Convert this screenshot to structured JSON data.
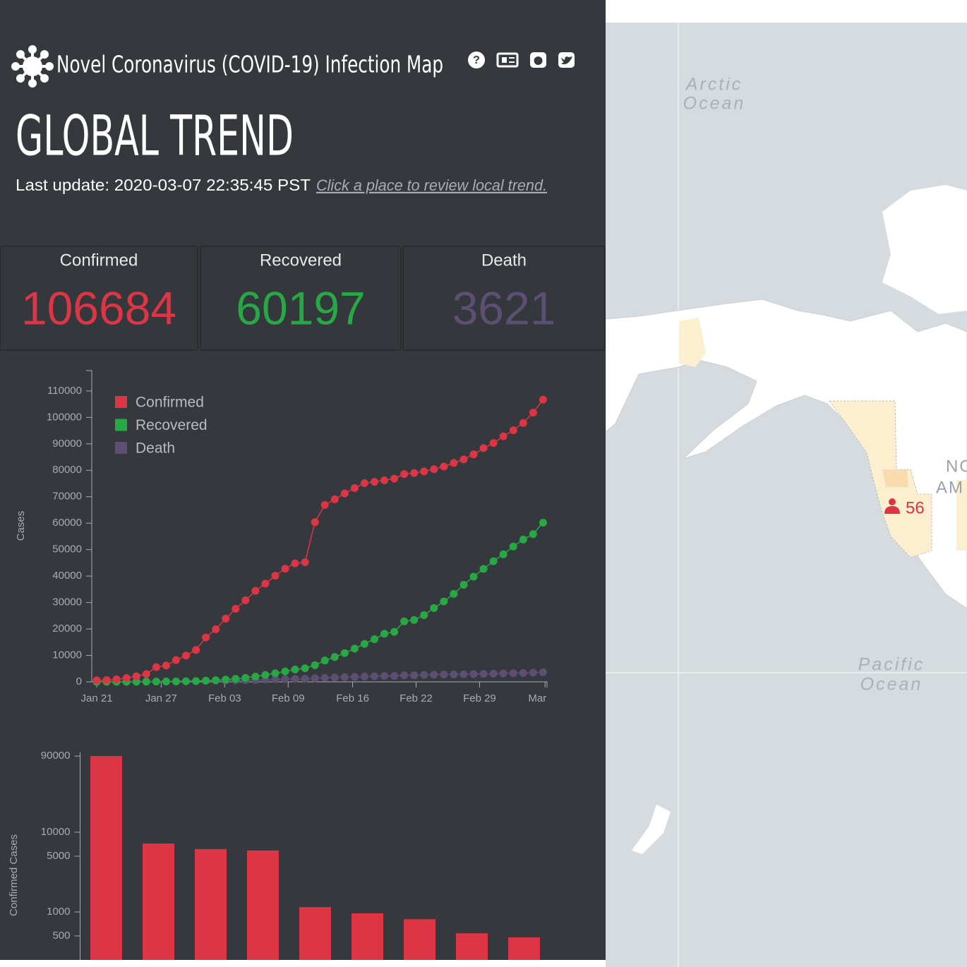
{
  "header": {
    "title": "Novel Coronavirus (COVID-19) Infection Map",
    "page_title": "GLOBAL TREND",
    "last_update": "Last update: 2020-03-07 22:35:45 PST",
    "hint": "Click a place to review local trend."
  },
  "stats": [
    {
      "label": "Confirmed",
      "value": 106684,
      "color": "#dc3545"
    },
    {
      "label": "Recovered",
      "value": 60197,
      "color": "#28a745"
    },
    {
      "label": "Death",
      "value": 3621,
      "color": "#5c4f72"
    }
  ],
  "chart_data": [
    {
      "type": "line",
      "ylabel": "Cases",
      "legend": "upper left",
      "xlim": [
        -0.5,
        45.4
      ],
      "xticks": [
        {
          "value": 0,
          "label": "Jan 21"
        },
        {
          "value": 6.5,
          "label": "Jan 27"
        },
        {
          "value": 12.9,
          "label": "Feb 03"
        },
        {
          "value": 19.3,
          "label": "Feb 09"
        },
        {
          "value": 25.8,
          "label": "Feb 16"
        },
        {
          "value": 32.2,
          "label": "Feb 22"
        },
        {
          "value": 38.6,
          "label": "Feb 29"
        },
        {
          "value": 45.2,
          "label": "Mar"
        }
      ],
      "ylim": [
        0,
        117700
      ],
      "yticks": [
        0,
        10000,
        20000,
        30000,
        40000,
        50000,
        60000,
        70000,
        80000,
        90000,
        100000,
        110000
      ],
      "series": [
        {
          "name": "Confirmed",
          "color": "#dc3545",
          "values": [
            555,
            653,
            941,
            1434,
            2118,
            2927,
            5578,
            6166,
            8234,
            9927,
            12038,
            16787,
            19881,
            23892,
            27635,
            30817,
            34391,
            37120,
            40150,
            42762,
            44802,
            45221,
            60368,
            66885,
            69030,
            71224,
            73258,
            75136,
            75639,
            76197,
            76823,
            78579,
            78965,
            79568,
            80413,
            81395,
            82754,
            84120,
            86011,
            88369,
            90306,
            92840,
            95120,
            97886,
            101801,
            106684
          ]
        },
        {
          "name": "Recovered",
          "color": "#28a745",
          "values": [
            28,
            30,
            36,
            39,
            52,
            61,
            107,
            126,
            143,
            222,
            284,
            472,
            623,
            852,
            1124,
            1487,
            2011,
            2616,
            3244,
            3946,
            4683,
            5150,
            6295,
            8058,
            9395,
            10865,
            12583,
            14352,
            16121,
            18177,
            18890,
            22886,
            23394,
            25227,
            27905,
            30384,
            33277,
            36711,
            39782,
            42716,
            45602,
            48228,
            51170,
            53796,
            55865,
            60197
          ]
        },
        {
          "name": "Death",
          "color": "#5c4f72",
          "values": [
            17,
            18,
            26,
            42,
            56,
            82,
            131,
            133,
            171,
            213,
            259,
            362,
            426,
            492,
            564,
            634,
            719,
            806,
            906,
            1013,
            1113,
            1118,
            1371,
            1523,
            1666,
            1770,
            1868,
            2007,
            2122,
            2247,
            2251,
            2458,
            2469,
            2629,
            2708,
            2770,
            2814,
            2872,
            2941,
            2996,
            3085,
            3160,
            3254,
            3348,
            3460,
            3621
          ]
        }
      ]
    },
    {
      "type": "bar",
      "ylabel": "Confirmed Cases",
      "log_scale": true,
      "color": "#dc3545",
      "categories": [
        null,
        null,
        null,
        null,
        null,
        null,
        null,
        null,
        null
      ],
      "values": [
        90000,
        7200,
        6140,
        5900,
        1150,
        960,
        810,
        540,
        480
      ],
      "ylim": [
        250,
        100000
      ],
      "yticks": [
        500,
        1000,
        5000,
        10000,
        90000
      ]
    }
  ],
  "map": {
    "arctic": [
      "Arctic",
      "Ocean"
    ],
    "pacific": [
      "Pacific",
      "Ocean"
    ],
    "continent": [
      "NO",
      "AM"
    ],
    "marker": 56
  }
}
